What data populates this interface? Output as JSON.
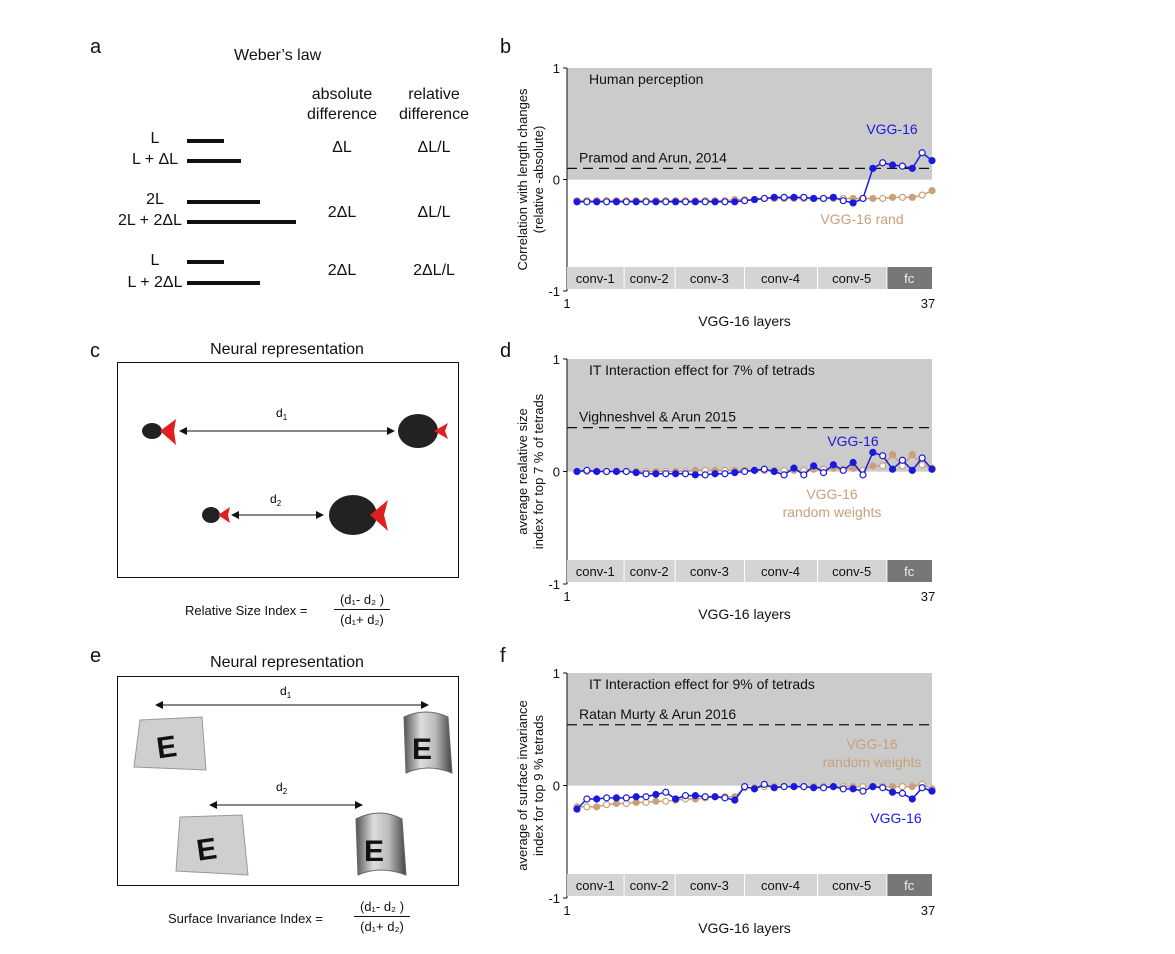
{
  "panels": {
    "a": "a",
    "b": "b",
    "c": "c",
    "d": "d",
    "e": "e",
    "f": "f"
  },
  "panel_a": {
    "title": "Weber’s law",
    "col1_header": [
      "absolute",
      "difference"
    ],
    "col2_header": [
      "relative",
      "difference"
    ],
    "rows": [
      {
        "labels": [
          "L",
          "L + ΔL"
        ],
        "abs": "ΔL",
        "rel": "ΔL/L"
      },
      {
        "labels": [
          "2L",
          "2L + 2ΔL"
        ],
        "abs": "2ΔL",
        "rel": "ΔL/L"
      },
      {
        "labels": [
          "L",
          "L + 2ΔL"
        ],
        "abs": "2ΔL",
        "rel": "2ΔL/L"
      }
    ]
  },
  "panel_c": {
    "title": "Neural representation",
    "d1": "d",
    "d2": "d",
    "index_label": "Relative Size Index =",
    "numerator": "(d₁- d₂ )",
    "denominator": "(d₁+ d₂)"
  },
  "panel_e": {
    "title": "Neural representation",
    "d1": "d",
    "d2": "d",
    "letter": "E",
    "index_label": "Surface Invariance Index =",
    "numerator": "(d₁- d₂ )",
    "denominator": "(d₁+ d₂)"
  },
  "chart_data": [
    {
      "type": "line",
      "panel": "b",
      "ylabel": "Correlation with length changes (relative -absolute)",
      "xlabel": "VGG-16 layers",
      "ylim": [
        -1,
        1
      ],
      "xlim": [
        1,
        37
      ],
      "yticks": [
        "1",
        "0",
        "-1"
      ],
      "xticks": [
        "1",
        "37"
      ],
      "shaded_label": "Human perception",
      "reference": {
        "label": "Pramod and Arun, 2014",
        "value": 0.1
      },
      "series": [
        {
          "name": "VGG-16",
          "color": "#1a1adb",
          "values": [
            -0.2,
            -0.2,
            -0.2,
            -0.2,
            -0.2,
            -0.2,
            -0.2,
            -0.2,
            -0.2,
            -0.2,
            -0.2,
            -0.2,
            -0.2,
            -0.2,
            -0.2,
            -0.2,
            -0.2,
            -0.19,
            -0.18,
            -0.17,
            -0.16,
            -0.16,
            -0.16,
            -0.16,
            -0.17,
            -0.17,
            -0.16,
            -0.19,
            -0.21,
            -0.17,
            0.1,
            0.15,
            0.13,
            0.12,
            0.1,
            0.24,
            0.17
          ]
        },
        {
          "name": "VGG-16 rand",
          "color": "#c8a07a",
          "values": [
            -0.19,
            -0.19,
            -0.19,
            -0.19,
            -0.19,
            -0.19,
            -0.19,
            -0.19,
            -0.19,
            -0.19,
            -0.19,
            -0.19,
            -0.19,
            -0.19,
            -0.19,
            -0.19,
            -0.18,
            -0.18,
            -0.18,
            -0.17,
            -0.17,
            -0.17,
            -0.17,
            -0.17,
            -0.17,
            -0.17,
            -0.17,
            -0.17,
            -0.17,
            -0.17,
            -0.17,
            -0.17,
            -0.16,
            -0.16,
            -0.16,
            -0.14,
            -0.1
          ]
        }
      ],
      "layer_groups": [
        "conv-1",
        "conv-2",
        "conv-3",
        "conv-4",
        "conv-5",
        "fc"
      ]
    },
    {
      "type": "line",
      "panel": "d",
      "ylabel": "average realative size index for top 7 % of tetrads",
      "xlabel": "VGG-16 layers",
      "ylim": [
        -1,
        1
      ],
      "xlim": [
        1,
        37
      ],
      "yticks": [
        "1",
        "0",
        "-1"
      ],
      "xticks": [
        "1",
        "37"
      ],
      "shaded_label": "IT Interaction effect for 7% of tetrads",
      "reference": {
        "label": "Vighneshvel & Arun 2015",
        "value": 0.39
      },
      "series": [
        {
          "name": "VGG-16",
          "color": "#1a1adb",
          "values": [
            0,
            0.01,
            0,
            0,
            0,
            0,
            -0.01,
            -0.02,
            -0.02,
            -0.02,
            -0.02,
            -0.02,
            -0.03,
            -0.03,
            -0.02,
            -0.02,
            -0.01,
            0,
            0.01,
            0.02,
            0,
            -0.03,
            0.03,
            -0.03,
            0.05,
            -0.01,
            0.06,
            0.01,
            0.08,
            -0.03,
            0.17,
            0.14,
            0.02,
            0.1,
            0.01,
            0.12,
            0.02
          ]
        },
        {
          "name": "VGG-16\nrandom weights",
          "color": "#c8a07a",
          "values": [
            0,
            0,
            0,
            0,
            0,
            0,
            0,
            0,
            0,
            0,
            0,
            0,
            0.01,
            0.01,
            0.01,
            0.01,
            0.01,
            0.01,
            0.01,
            0.01,
            0.01,
            0.01,
            0.01,
            0.01,
            0.02,
            0.02,
            0.03,
            0.02,
            0.03,
            0.01,
            0.05,
            0.05,
            0.15,
            0.05,
            0.15,
            0.06,
            0.03
          ]
        }
      ],
      "layer_groups": [
        "conv-1",
        "conv-2",
        "conv-3",
        "conv-4",
        "conv-5",
        "fc"
      ]
    },
    {
      "type": "line",
      "panel": "f",
      "ylabel": "average of surface invariance index for top 9 % tetrads",
      "xlabel": "VGG-16 layers",
      "ylim": [
        -1,
        1
      ],
      "xlim": [
        1,
        37
      ],
      "yticks": [
        "1",
        "0",
        "-1"
      ],
      "xticks": [
        "1",
        "37"
      ],
      "shaded_label": "IT Interaction effect for 9% of tetrads",
      "reference": {
        "label": "Ratan Murty & Arun 2016",
        "value": 0.54
      },
      "series": [
        {
          "name": "VGG-16",
          "color": "#1a1adb",
          "values": [
            -0.21,
            -0.12,
            -0.12,
            -0.11,
            -0.11,
            -0.11,
            -0.1,
            -0.1,
            -0.08,
            -0.06,
            -0.12,
            -0.09,
            -0.09,
            -0.1,
            -0.1,
            -0.11,
            -0.13,
            -0.01,
            -0.03,
            0.01,
            -0.02,
            -0.01,
            -0.01,
            -0.01,
            -0.02,
            -0.02,
            -0.01,
            -0.03,
            -0.03,
            -0.05,
            -0.01,
            -0.02,
            -0.06,
            -0.07,
            -0.12,
            -0.02,
            -0.05
          ]
        },
        {
          "name": "VGG-16\nrandom weights",
          "color": "#c8a07a",
          "values": [
            -0.19,
            -0.19,
            -0.19,
            -0.17,
            -0.16,
            -0.16,
            -0.15,
            -0.15,
            -0.14,
            -0.14,
            -0.13,
            -0.12,
            -0.12,
            -0.11,
            -0.1,
            -0.1,
            -0.1,
            -0.02,
            -0.02,
            -0.01,
            -0.01,
            -0.01,
            -0.01,
            -0.01,
            -0.01,
            -0.01,
            -0.01,
            -0.01,
            -0.01,
            -0.01,
            -0.01,
            -0.01,
            -0.01,
            -0.01,
            -0.01,
            0.01,
            -0.03
          ]
        }
      ],
      "layer_groups": [
        "conv-1",
        "conv-2",
        "conv-3",
        "conv-4",
        "conv-5",
        "fc"
      ]
    }
  ]
}
